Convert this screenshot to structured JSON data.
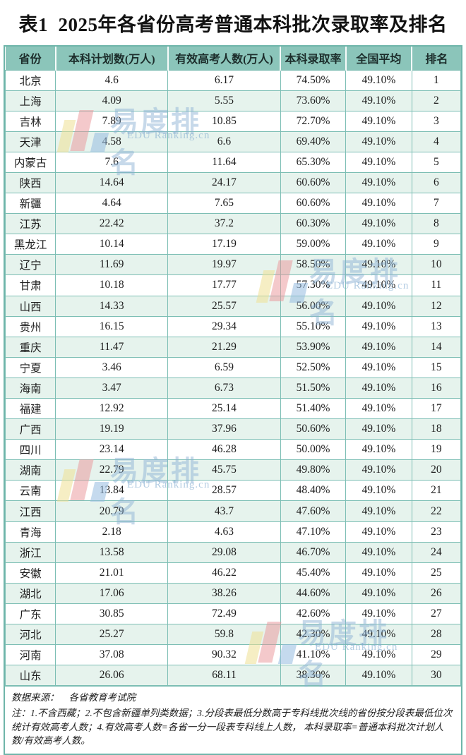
{
  "title": "表1  2025年各省份高考普通本科批次录取率及排名",
  "chart_data": {
    "type": "table",
    "title": "表1 2025年各省份高考普通本科批次录取率及排名",
    "columns": [
      "省份",
      "本科计划数(万人)",
      "有效高考人数(万人)",
      "本科录取率",
      "全国平均",
      "排名"
    ],
    "rows": [
      [
        "北京",
        "4.6",
        "6.17",
        "74.50%",
        "49.10%",
        "1"
      ],
      [
        "上海",
        "4.09",
        "5.55",
        "73.60%",
        "49.10%",
        "2"
      ],
      [
        "吉林",
        "7.89",
        "10.85",
        "72.70%",
        "49.10%",
        "3"
      ],
      [
        "天津",
        "4.58",
        "6.6",
        "69.40%",
        "49.10%",
        "4"
      ],
      [
        "内蒙古",
        "7.6",
        "11.64",
        "65.30%",
        "49.10%",
        "5"
      ],
      [
        "陕西",
        "14.64",
        "24.17",
        "60.60%",
        "49.10%",
        "6"
      ],
      [
        "新疆",
        "4.64",
        "7.65",
        "60.60%",
        "49.10%",
        "7"
      ],
      [
        "江苏",
        "22.42",
        "37.2",
        "60.30%",
        "49.10%",
        "8"
      ],
      [
        "黑龙江",
        "10.14",
        "17.19",
        "59.00%",
        "49.10%",
        "9"
      ],
      [
        "辽宁",
        "11.69",
        "19.97",
        "58.50%",
        "49.10%",
        "10"
      ],
      [
        "甘肃",
        "10.18",
        "17.77",
        "57.30%",
        "49.10%",
        "11"
      ],
      [
        "山西",
        "14.33",
        "25.57",
        "56.00%",
        "49.10%",
        "12"
      ],
      [
        "贵州",
        "16.15",
        "29.34",
        "55.10%",
        "49.10%",
        "13"
      ],
      [
        "重庆",
        "11.47",
        "21.29",
        "53.90%",
        "49.10%",
        "14"
      ],
      [
        "宁夏",
        "3.46",
        "6.59",
        "52.50%",
        "49.10%",
        "15"
      ],
      [
        "海南",
        "3.47",
        "6.73",
        "51.50%",
        "49.10%",
        "16"
      ],
      [
        "福建",
        "12.92",
        "25.14",
        "51.40%",
        "49.10%",
        "17"
      ],
      [
        "广西",
        "19.19",
        "37.96",
        "50.60%",
        "49.10%",
        "18"
      ],
      [
        "四川",
        "23.14",
        "46.28",
        "50.00%",
        "49.10%",
        "19"
      ],
      [
        "湖南",
        "22.79",
        "45.75",
        "49.80%",
        "49.10%",
        "20"
      ],
      [
        "云南",
        "13.84",
        "28.57",
        "48.40%",
        "49.10%",
        "21"
      ],
      [
        "江西",
        "20.79",
        "43.7",
        "47.60%",
        "49.10%",
        "22"
      ],
      [
        "青海",
        "2.18",
        "4.63",
        "47.10%",
        "49.10%",
        "23"
      ],
      [
        "浙江",
        "13.58",
        "29.08",
        "46.70%",
        "49.10%",
        "24"
      ],
      [
        "安徽",
        "21.01",
        "46.22",
        "45.40%",
        "49.10%",
        "25"
      ],
      [
        "湖北",
        "17.06",
        "38.26",
        "44.60%",
        "49.10%",
        "26"
      ],
      [
        "广东",
        "30.85",
        "72.49",
        "42.60%",
        "49.10%",
        "27"
      ],
      [
        "河北",
        "25.27",
        "59.8",
        "42.30%",
        "49.10%",
        "28"
      ],
      [
        "河南",
        "37.08",
        "90.32",
        "41.10%",
        "49.10%",
        "29"
      ],
      [
        "山东",
        "26.06",
        "68.11",
        "38.30%",
        "49.10%",
        "30"
      ]
    ],
    "national_average": "49.10%",
    "source": "数据来源：各省教育考试院",
    "notes": "注：1.不含西藏；2.不包含新疆单列类数据；3.分段表最低分数高于专科线批次线的省份按分段表最低位次统计有效高考人数；4.有效高考人数=各省一分一段表专科线上人数，本科录取率=普通本科批次计划人数/有效高考人数。"
  },
  "footer": {
    "source_label": "数据来源：",
    "source_value": "各省教育考试院",
    "notes": "注：1.不含西藏；2.不包含新疆单列类数据；3.分段表最低分数高于专科线批次线的省份按分段表最低位次统计有效高考人数；4.有效高考人数=各省一分一段表专科线上人数， 本科录取率=普通本科批次计划人数/有效高考人数。"
  },
  "watermark": {
    "brand": "易度排名",
    "subtext": "EDU Ranking.cn"
  },
  "colors": {
    "header_bg": "#8bc5ba",
    "grid": "#7cbeb4",
    "outer_border": "#6fb5aa",
    "alt_row_bg": "#e6f3ed",
    "watermark_blue": "#89b0d3",
    "logo_yellow": "#eee094",
    "logo_pink": "#ea9498",
    "logo_blue": "#96bce0"
  }
}
